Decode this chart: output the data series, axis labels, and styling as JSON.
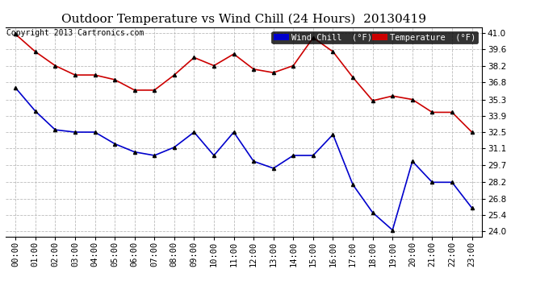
{
  "title": "Outdoor Temperature vs Wind Chill (24 Hours)  20130419",
  "copyright": "Copyright 2013 Cartronics.com",
  "x_labels": [
    "00:00",
    "01:00",
    "02:00",
    "03:00",
    "04:00",
    "05:00",
    "06:00",
    "07:00",
    "08:00",
    "09:00",
    "10:00",
    "11:00",
    "12:00",
    "13:00",
    "14:00",
    "15:00",
    "16:00",
    "17:00",
    "18:00",
    "19:00",
    "20:00",
    "21:00",
    "22:00",
    "23:00"
  ],
  "temperature": [
    40.9,
    39.4,
    38.2,
    37.4,
    37.4,
    37.0,
    36.1,
    36.1,
    37.4,
    38.9,
    38.2,
    39.2,
    37.9,
    37.6,
    38.2,
    40.6,
    39.4,
    37.2,
    35.2,
    35.6,
    35.3,
    34.2,
    34.2,
    32.5
  ],
  "wind_chill": [
    36.3,
    34.3,
    32.7,
    32.5,
    32.5,
    31.5,
    30.8,
    30.5,
    31.2,
    32.5,
    30.5,
    32.5,
    30.0,
    29.4,
    30.5,
    30.5,
    32.3,
    28.0,
    25.6,
    24.1,
    30.0,
    28.2,
    28.2,
    26.0
  ],
  "ylim_min": 23.5,
  "ylim_max": 41.5,
  "y_ticks": [
    24.0,
    25.4,
    26.8,
    28.2,
    29.7,
    31.1,
    32.5,
    33.9,
    35.3,
    36.8,
    38.2,
    39.6,
    41.0
  ],
  "temp_color": "#cc0000",
  "wind_color": "#0000cc",
  "bg_color": "#ffffff",
  "grid_color": "#bbbbbb",
  "legend_wind_bg": "#0000cc",
  "legend_temp_bg": "#cc0000",
  "title_fontsize": 11,
  "copyright_fontsize": 7,
  "legend_fontsize": 7.5,
  "tick_fontsize": 7.5,
  "marker": "^",
  "marker_size": 3,
  "line_width": 1.2
}
